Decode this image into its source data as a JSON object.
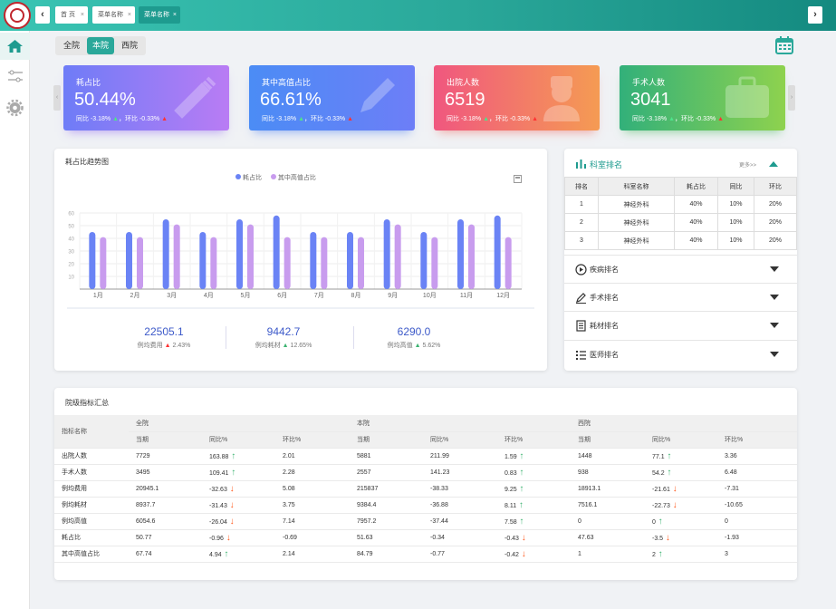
{
  "tabs": {
    "home": "首 页",
    "menu1": "菜单名称",
    "menu2": "菜单名称"
  },
  "scope": {
    "all": "全院",
    "this": "本院",
    "west": "西院"
  },
  "kpis": [
    {
      "title": "耗占比",
      "value": "50.44%",
      "yoy": "同比 -3.18%",
      "mom": "环比 -0.33%"
    },
    {
      "title": "其中高值占比",
      "value": "66.61%",
      "yoy": "同比 -3.18%",
      "mom": "环比 -0.33%"
    },
    {
      "title": "出院人数",
      "value": "6519",
      "yoy": "同比 -3.18%",
      "mom": "环比 -0.33%"
    },
    {
      "title": "手术人数",
      "value": "3041",
      "yoy": "同比 -3.18%",
      "mom": "环比 -0.33%"
    }
  ],
  "trend": {
    "title": "耗占比趋势图"
  },
  "chart_data": {
    "type": "bar",
    "categories": [
      "1月",
      "2月",
      "3月",
      "4月",
      "5月",
      "6月",
      "7月",
      "8月",
      "9月",
      "10月",
      "11月",
      "12月"
    ],
    "series": [
      {
        "name": "耗占比",
        "values": [
          45,
          45,
          55,
          45,
          55,
          58,
          45,
          45,
          55,
          45,
          55,
          58
        ]
      },
      {
        "name": "其中高值占比",
        "values": [
          41,
          41,
          51,
          41,
          51,
          41,
          41,
          41,
          51,
          41,
          51,
          41
        ]
      }
    ],
    "yticks": [
      10,
      20,
      30,
      40,
      50,
      60
    ],
    "ylim": [
      0,
      60
    ],
    "colors": [
      "#6a83f5",
      "#c89cee"
    ]
  },
  "stats": [
    {
      "value": "22505.1",
      "label": "例均费用",
      "pct": "2.43%"
    },
    {
      "value": "9442.7",
      "label": "例均耗材",
      "pct": "12.65%"
    },
    {
      "value": "6290.0",
      "label": "例均高值",
      "pct": "5.62%"
    }
  ],
  "dept": {
    "title": "科室排名",
    "more": "更多>>",
    "headers": [
      "排名",
      "科室名称",
      "耗占比",
      "同比",
      "环比"
    ],
    "rows": [
      [
        "1",
        "神经外科",
        "40%",
        "10%",
        "20%"
      ],
      [
        "2",
        "神经外科",
        "40%",
        "10%",
        "20%"
      ],
      [
        "3",
        "神经外科",
        "40%",
        "10%",
        "20%"
      ]
    ]
  },
  "accordion": [
    "疾病排名",
    "手术排名",
    "耗材排名",
    "医师排名"
  ],
  "summary": {
    "title": "院级指标汇总",
    "indicator": "指标名称",
    "groups": [
      "全院",
      "本院",
      "西院"
    ],
    "subheaders": [
      "当期",
      "同比%",
      "环比%"
    ],
    "rows": [
      {
        "name": "出院人数",
        "c": [
          "7729",
          "163.88",
          "2.01",
          "5881",
          "211.99",
          "1.59",
          "1448",
          "77.1",
          "3.36"
        ],
        "d": [
          "",
          "up",
          "",
          "",
          "",
          "up",
          "",
          "up",
          ""
        ]
      },
      {
        "name": "手术人数",
        "c": [
          "3495",
          "109.41",
          "2.28",
          "2557",
          "141.23",
          "0.83",
          "938",
          "54.2",
          "6.48"
        ],
        "d": [
          "",
          "up",
          "",
          "",
          "",
          "up",
          "",
          "up",
          ""
        ]
      },
      {
        "name": "例均费用",
        "c": [
          "20945.1",
          "-32.63",
          "5.08",
          "215837",
          "-38.33",
          "9.25",
          "18913.1",
          "-21.61",
          "-7.31"
        ],
        "d": [
          "",
          "dn",
          "",
          "",
          "",
          "up",
          "",
          "dn",
          ""
        ]
      },
      {
        "name": "例均耗材",
        "c": [
          "8937.7",
          "-31.43",
          "3.75",
          "9384.4",
          "-36.88",
          "8.11",
          "7516.1",
          "-22.73",
          "-10.65"
        ],
        "d": [
          "",
          "dn",
          "",
          "",
          "",
          "up",
          "",
          "dn",
          ""
        ]
      },
      {
        "name": "例均高值",
        "c": [
          "6054.6",
          "-26.04",
          "7.14",
          "7957.2",
          "-37.44",
          "7.58",
          "0",
          "0",
          "0"
        ],
        "d": [
          "",
          "dn",
          "",
          "",
          "",
          "up",
          "",
          "up",
          ""
        ]
      },
      {
        "name": "耗占比",
        "c": [
          "50.77",
          "-0.96",
          "-0.69",
          "51.63",
          "-0.34",
          "-0.43",
          "47.63",
          "-3.5",
          "-1.93"
        ],
        "d": [
          "",
          "dn",
          "",
          "",
          "",
          "dn",
          "",
          "dn",
          ""
        ]
      },
      {
        "name": "其中高值占比",
        "c": [
          "67.74",
          "4.94",
          "2.14",
          "84.79",
          "-0.77",
          "-0.42",
          "1",
          "2",
          "3"
        ],
        "d": [
          "",
          "up",
          "",
          "",
          "",
          "dn",
          "",
          "up",
          ""
        ]
      }
    ]
  }
}
